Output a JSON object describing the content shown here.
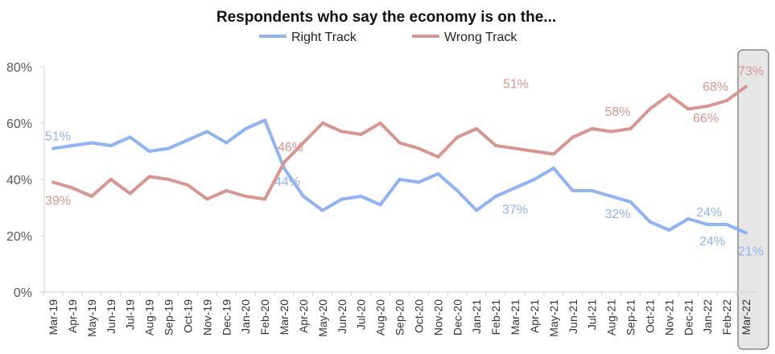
{
  "chart_data": {
    "type": "line",
    "title": "Respondents who say the economy is on the...",
    "categories": [
      "Mar-19",
      "Apr-19",
      "May-19",
      "Jun-19",
      "Jul-19",
      "Aug-19",
      "Sep-19",
      "Oct-19",
      "Nov-19",
      "Dec-19",
      "Jan-20",
      "Feb-20",
      "Mar-20",
      "Apr-20",
      "May-20",
      "Jun-20",
      "Jul-20",
      "Aug-20",
      "Sep-20",
      "Oct-20",
      "Nov-20",
      "Dec-20",
      "Jan-21",
      "Feb-21",
      "Mar-21",
      "Apr-21",
      "May-21",
      "Jun-21",
      "Jul-21",
      "Aug-21",
      "Sep-21",
      "Oct-21",
      "Nov-21",
      "Dec-21",
      "Jan-22",
      "Feb-22",
      "Mar-22"
    ],
    "series": [
      {
        "name": "Right Track",
        "color": "#8fb3f5",
        "values": [
          51,
          52,
          53,
          52,
          55,
          50,
          51,
          54,
          57,
          53,
          58,
          61,
          44,
          34,
          29,
          33,
          34,
          31,
          40,
          39,
          42,
          36,
          29,
          34,
          37,
          40,
          44,
          36,
          36,
          34,
          32,
          25,
          22,
          26,
          24,
          24,
          21
        ],
        "labels": [
          {
            "index": 0,
            "text": "51%"
          },
          {
            "index": 12,
            "text": "44%"
          },
          {
            "index": 24,
            "text": "37%"
          },
          {
            "index": 30,
            "text": "32%"
          },
          {
            "index": 34,
            "text": "24%"
          },
          {
            "index": 35,
            "text": "24%"
          },
          {
            "index": 36,
            "text": "21%"
          }
        ]
      },
      {
        "name": "Wrong Track",
        "color": "#d99590",
        "values": [
          39,
          37,
          34,
          40,
          35,
          41,
          40,
          38,
          33,
          36,
          34,
          33,
          46,
          53,
          60,
          57,
          56,
          60,
          53,
          51,
          48,
          55,
          58,
          52,
          51,
          50,
          49,
          55,
          58,
          57,
          58,
          65,
          70,
          65,
          66,
          68,
          73
        ],
        "labels": [
          {
            "index": 0,
            "text": "39%"
          },
          {
            "index": 12,
            "text": "46%"
          },
          {
            "index": 24,
            "text": "51%"
          },
          {
            "index": 30,
            "text": "58%"
          },
          {
            "index": 34,
            "text": "66%"
          },
          {
            "index": 35,
            "text": "68%"
          },
          {
            "index": 36,
            "text": "73%"
          }
        ]
      }
    ],
    "yticks": [
      "0%",
      "20%",
      "40%",
      "60%",
      "80%"
    ],
    "ylim": [
      0,
      80
    ],
    "legend": "top",
    "highlight": "Mar-22",
    "grid": false
  }
}
